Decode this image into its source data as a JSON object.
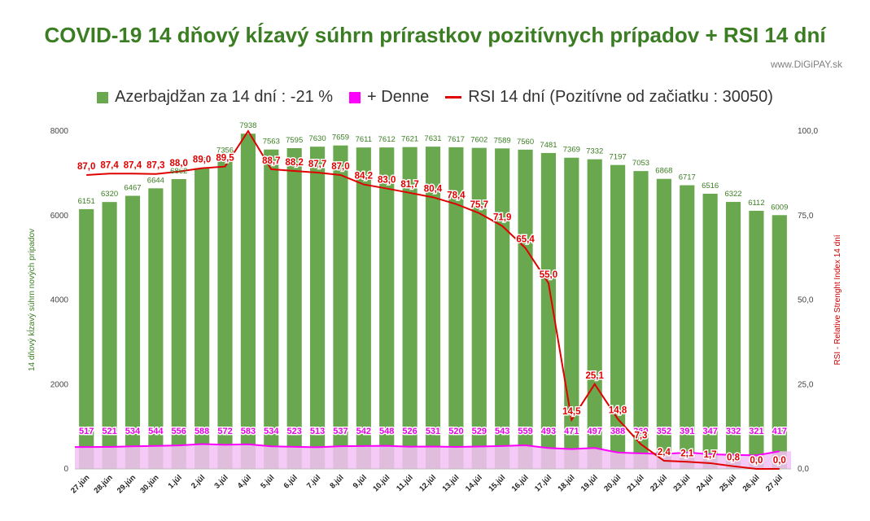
{
  "title": "COVID-19 14 dňový kĺzavý súhrn prírastkov pozitívnych prípadov + RSI 14 dní",
  "source": "www.DiGiPAY.sk",
  "legend": {
    "cases": "Azerbajdžan za 14 dní : -21 %",
    "daily": "+ Denne",
    "rsi": "RSI 14 dní (Pozitívne od začiatku : 30050)"
  },
  "colors": {
    "bar": "#6aa84f",
    "daily": "#ff00ff",
    "daily_fill": "#f4c1f4",
    "rsi": "#e00000",
    "title": "#3a7d22",
    "bar_label": "#3a7d22",
    "rsi_label": "#e00000",
    "daily_label": "#e600e6"
  },
  "chart_data": {
    "type": "bar",
    "categories": [
      "27.jún",
      "28.jún",
      "29.jún",
      "30.jún",
      "1.júl",
      "2.júl",
      "3.júl",
      "4.júl",
      "5.júl",
      "6.júl",
      "7.júl",
      "8.júl",
      "9.júl",
      "10.júl",
      "11.júl",
      "12.júl",
      "13.júl",
      "14.júl",
      "15.júl",
      "16.júl",
      "17.júl",
      "18.júl",
      "19.júl",
      "20.júl",
      "21.júl",
      "22.júl",
      "23.júl",
      "24.júl",
      "25.júl",
      "26.júl",
      "27.júl"
    ],
    "series": [
      {
        "name": "Azerbajdžan za 14 dní : -21 %",
        "type": "bar",
        "axis": "left",
        "values": [
          6151,
          6320,
          6467,
          6644,
          6862,
          7121,
          7356,
          7938,
          7563,
          7595,
          7630,
          7659,
          7611,
          7612,
          7621,
          7631,
          7617,
          7602,
          7589,
          7560,
          7481,
          7369,
          7332,
          7197,
          7053,
          6868,
          6717,
          6516,
          6322,
          6112,
          6009
        ]
      },
      {
        "name": "+ Denne",
        "type": "area",
        "axis": "left",
        "values": [
          517,
          521,
          534,
          544,
          556,
          588,
          572,
          583,
          534,
          523,
          513,
          537,
          542,
          548,
          526,
          531,
          520,
          529,
          543,
          559,
          493,
          471,
          497,
          388,
          369,
          352,
          391,
          347,
          332,
          321,
          417
        ]
      },
      {
        "name": "RSI 14 dní (Pozitívne od začiatku : 30050)",
        "type": "line",
        "axis": "right",
        "values": [
          87.0,
          87.4,
          87.4,
          87.3,
          88.0,
          89.0,
          89.5,
          100.0,
          88.7,
          88.2,
          87.7,
          87.0,
          84.2,
          83.0,
          81.7,
          80.4,
          78.4,
          75.7,
          71.9,
          65.4,
          55.0,
          14.5,
          25.1,
          14.8,
          7.3,
          2.4,
          2.1,
          1.7,
          0.8,
          0.0,
          0.0
        ],
        "labels": [
          "87,0",
          "87,4",
          "87,4",
          "87,3",
          "88,0",
          "89,0",
          "89,5",
          "",
          "88,7",
          "88,2",
          "87,7",
          "87,0",
          "84,2",
          "83,0",
          "81,7",
          "80,4",
          "78,4",
          "75,7",
          "71,9",
          "65,4",
          "55,0",
          "14,5",
          "25,1",
          "14,8",
          "7,3",
          "2,4",
          "2,1",
          "1,7",
          "0,8",
          "0,0",
          "0,0"
        ]
      }
    ],
    "ylabel": "14 dňový kĺzavý  súhrn nových prípadov",
    "y2label": "RSI - Relative Strenght Index 14 dní",
    "ylim": [
      0,
      8000
    ],
    "y2lim": [
      0,
      100
    ],
    "yticks": [
      "0",
      "2000",
      "4000",
      "6000",
      "8000"
    ],
    "y2ticks": [
      "0,0",
      "25,0",
      "50,0",
      "75,0",
      "100,0"
    ],
    "legend_position": "top"
  }
}
